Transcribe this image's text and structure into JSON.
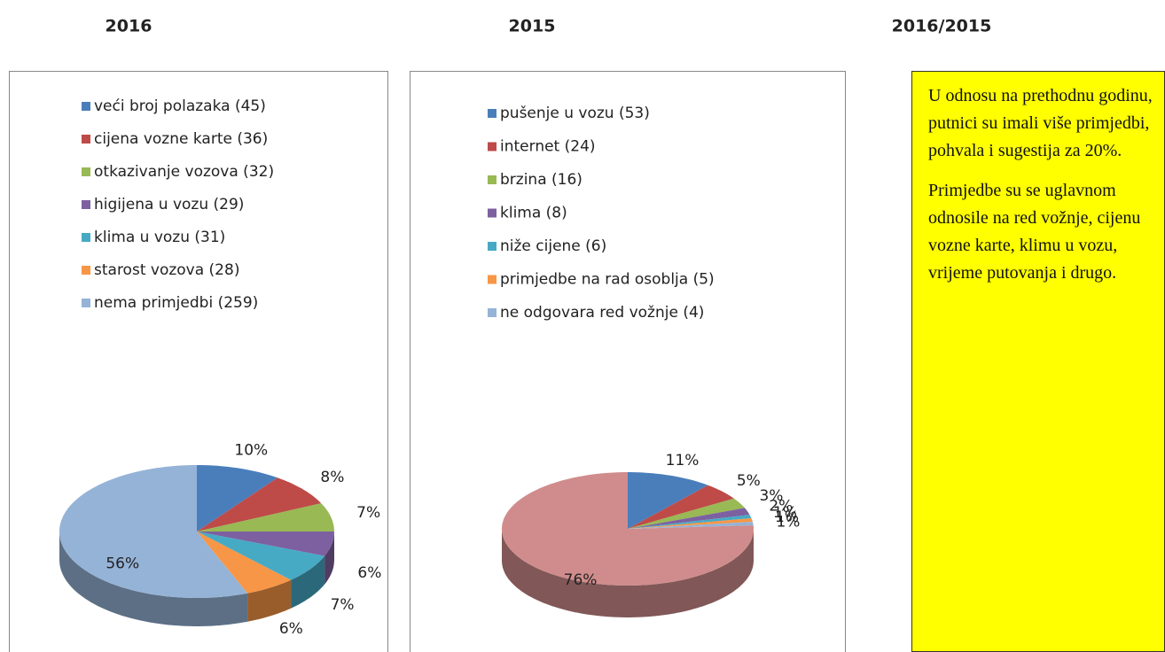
{
  "headers": [
    "2016",
    "2015",
    "2016/2015"
  ],
  "chart_data": [
    {
      "type": "pie",
      "categories": [
        "veći broj polazaka (45)",
        "cijena vozne karte (36)",
        "otkazivanje vozova (32)",
        "higijena u vozu (29)",
        "klima u vozu (31)",
        "starost vozova (28)",
        "nema primjedbi (259)"
      ],
      "values": [
        10,
        8,
        7,
        6,
        7,
        6,
        56
      ],
      "value_labels": [
        "10%",
        "8%",
        "7%",
        "6%",
        "7%",
        "6%",
        "56%"
      ],
      "colors": [
        "#4a7ebb",
        "#be4b48",
        "#98b954",
        "#7d60a0",
        "#46aac5",
        "#f79646",
        "#95b3d7"
      ],
      "legend": "top"
    },
    {
      "type": "pie",
      "categories": [
        "pušenje u vozu (53)",
        "internet (24)",
        "brzina (16)",
        "klima (8)",
        "niže cijene (6)",
        "primjedbe na rad osoblja (5)",
        "ne odgovara red vožnje (4)",
        null
      ],
      "values": [
        11,
        5,
        3,
        2,
        1,
        1,
        1,
        76
      ],
      "value_labels": [
        "11%",
        "5%",
        "3%",
        "2%",
        "1%",
        "1%",
        "1%",
        "76%"
      ],
      "colors": [
        "#4a7ebb",
        "#be4b48",
        "#98b954",
        "#7d60a0",
        "#46aac5",
        "#f79646",
        "#95b3d7",
        "#d08c8c"
      ],
      "legend": "top"
    }
  ],
  "note": {
    "paragraphs": [
      "U odnosu na prethodnu godinu, putnici su imali više primjedbi, pohvala i sugestija za 20%.",
      "Primjedbe su se uglavnom odnosile na red vožnje, cijenu vozne karte, klimu u vozu, vrijeme putovanja i drugo."
    ]
  }
}
